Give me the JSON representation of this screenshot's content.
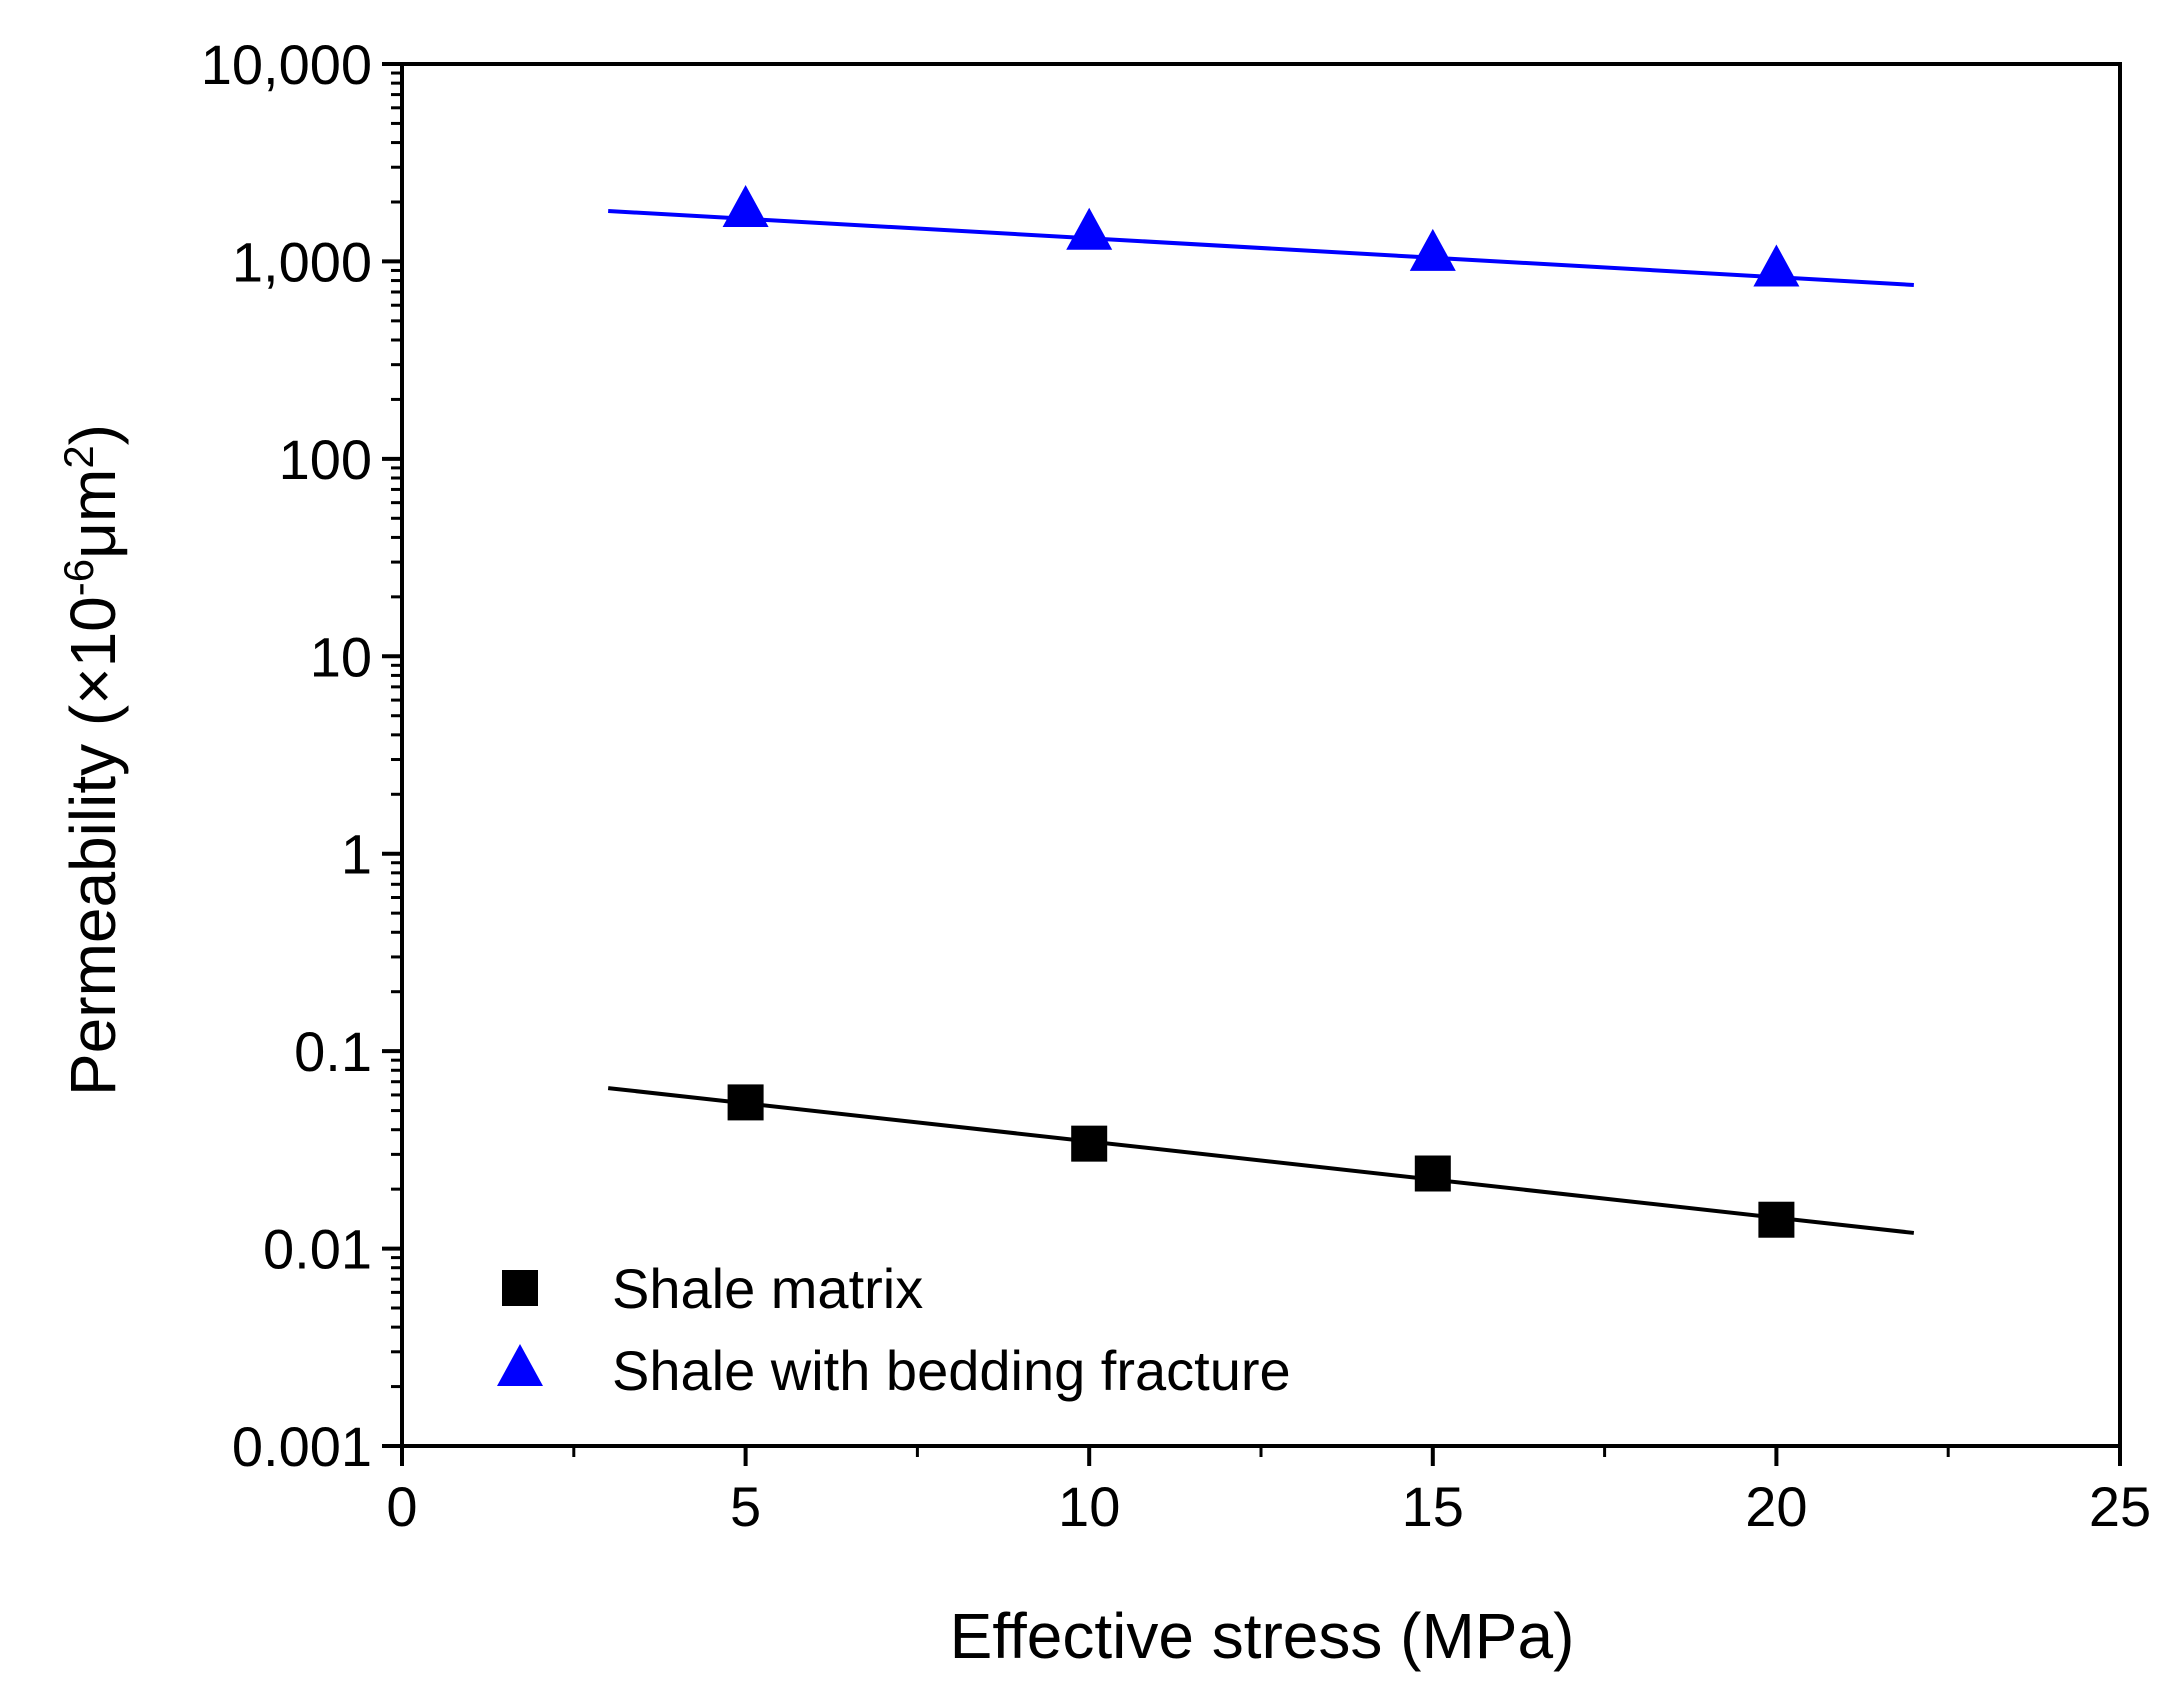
{
  "chart_data": {
    "type": "scatter",
    "xlabel": "Effective stress (MPa)",
    "ylabel": {
      "prefix": "Permeability (×10",
      "exp1": "-6",
      "mid": "μm",
      "exp2": "2",
      "suffix": ")"
    },
    "xlim": [
      0,
      25
    ],
    "ylim": [
      0.001,
      10000
    ],
    "yscale": "log",
    "xticks": [
      0,
      5,
      10,
      15,
      20,
      25
    ],
    "xtick_labels": [
      "0",
      "5",
      "10",
      "15",
      "20",
      "25"
    ],
    "yticks": [
      0.001,
      0.01,
      0.1,
      1,
      10,
      100,
      1000,
      10000
    ],
    "ytick_labels": [
      "0.001",
      "0.01",
      "0.1",
      "1",
      "10",
      "100",
      "1,000",
      "10,000"
    ],
    "legend_position": "bottom-left",
    "series": [
      {
        "name": "Shale matrix",
        "marker": "square",
        "color": "#000000",
        "x": [
          5,
          10,
          15,
          20
        ],
        "y": [
          0.055,
          0.034,
          0.024,
          0.014
        ],
        "fit": {
          "x": [
            3,
            22
          ],
          "y": [
            0.065,
            0.012
          ]
        }
      },
      {
        "name": "Shale with bedding fracture",
        "marker": "triangle",
        "color": "#0000ff",
        "x": [
          5,
          10,
          15,
          20
        ],
        "y": [
          1800,
          1380,
          1080,
          900
        ],
        "fit": {
          "x": [
            3,
            22
          ],
          "y": [
            1800,
            760
          ]
        }
      }
    ]
  }
}
